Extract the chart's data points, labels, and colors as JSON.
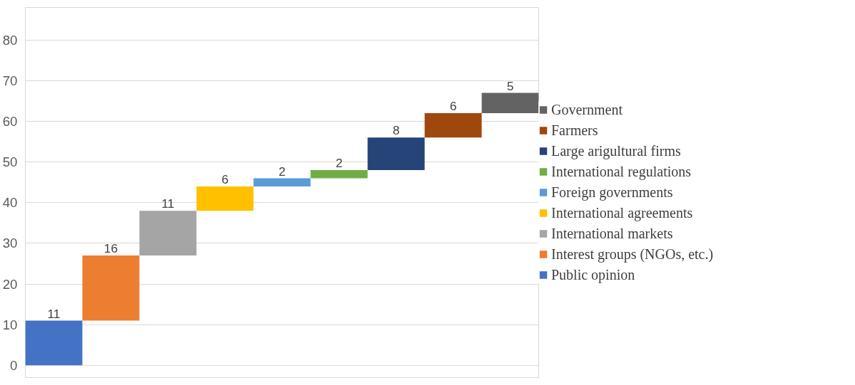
{
  "chart_data": {
    "type": "bar",
    "categories": [
      null,
      null,
      null,
      null,
      null,
      null,
      null,
      null,
      null
    ],
    "series": [
      {
        "name": "Public opinion",
        "color": "#4472c4",
        "values": [
          11,
          null,
          null,
          null,
          null,
          null,
          null,
          null,
          null
        ],
        "base": [
          0,
          null,
          null,
          null,
          null,
          null,
          null,
          null,
          null
        ]
      },
      {
        "name": "Interest groups (NGOs, etc.)",
        "color": "#ed7d31",
        "values": [
          null,
          16,
          null,
          null,
          null,
          null,
          null,
          null,
          null
        ],
        "base": [
          null,
          11,
          null,
          null,
          null,
          null,
          null,
          null,
          null
        ]
      },
      {
        "name": "International markets",
        "color": "#a5a5a5",
        "values": [
          null,
          null,
          11,
          null,
          null,
          null,
          null,
          null,
          null
        ],
        "base": [
          null,
          null,
          27,
          null,
          null,
          null,
          null,
          null,
          null
        ]
      },
      {
        "name": "International agreements",
        "color": "#ffc000",
        "values": [
          null,
          null,
          null,
          6,
          null,
          null,
          null,
          null,
          null
        ],
        "base": [
          null,
          null,
          null,
          38,
          null,
          null,
          null,
          null,
          null
        ]
      },
      {
        "name": "Foreign governments",
        "color": "#5b9bd5",
        "values": [
          null,
          null,
          null,
          null,
          2,
          null,
          null,
          null,
          null
        ],
        "base": [
          null,
          null,
          null,
          null,
          44,
          null,
          null,
          null,
          null
        ]
      },
      {
        "name": "International regulations",
        "color": "#70ad47",
        "values": [
          null,
          null,
          null,
          null,
          null,
          2,
          null,
          null,
          null
        ],
        "base": [
          null,
          null,
          null,
          null,
          null,
          46,
          null,
          null,
          null
        ]
      },
      {
        "name": "Large arigultural firms",
        "color": "#264478",
        "values": [
          null,
          null,
          null,
          null,
          null,
          null,
          8,
          null,
          null
        ],
        "base": [
          null,
          null,
          null,
          null,
          null,
          null,
          48,
          null,
          null
        ]
      },
      {
        "name": "Farmers",
        "color": "#9e480e",
        "values": [
          null,
          null,
          null,
          null,
          null,
          null,
          null,
          6,
          null
        ],
        "base": [
          null,
          null,
          null,
          null,
          null,
          null,
          null,
          56,
          null
        ]
      },
      {
        "name": "Government",
        "color": "#636363",
        "values": [
          null,
          null,
          null,
          null,
          null,
          null,
          null,
          null,
          5
        ],
        "base": [
          null,
          null,
          null,
          null,
          null,
          null,
          null,
          null,
          62
        ]
      }
    ],
    "ylim": [
      -3,
      88
    ],
    "yticks": [
      0,
      10,
      20,
      30,
      40,
      50,
      60,
      70,
      80
    ],
    "grid": "y",
    "legend": "right",
    "tick_labels": "y",
    "data_labels": true
  }
}
